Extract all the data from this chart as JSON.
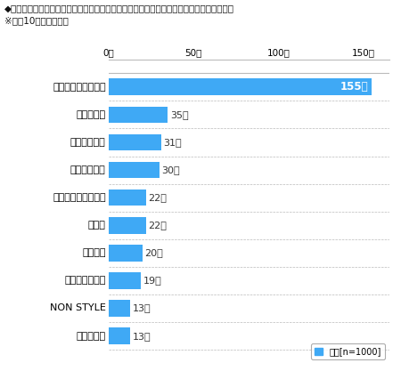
{
  "title_line1": "◆今年一年にみたお笑いのなかで、笑いのツボに入ったお笑いタレント　（自由回答形式）",
  "title_line2": "※上位10位までを抜粹",
  "categories": [
    "日本エレキテル連合",
    "どぶろっく",
    "明石家さんま",
    "ダウンタウン",
    "サンドウィッチマン",
    "流れ星",
    "有吉弘行",
    "タカアンドトシ",
    "NON STYLE",
    "さまぁ～ず"
  ],
  "values": [
    155,
    35,
    31,
    30,
    22,
    22,
    20,
    19,
    13,
    13
  ],
  "bar_color": "#3fa9f5",
  "xlim_max": 165,
  "xticks": [
    0,
    50,
    100,
    150
  ],
  "xlabel_top": [
    "0人",
    "50人",
    "100人",
    "150人"
  ],
  "legend_label": "全体[n=1000]",
  "legend_color": "#3fa9f5",
  "background_color": "#ffffff",
  "grid_color": "#bbbbbb",
  "value_label_color_first": "#ffffff",
  "value_label_color": "#333333",
  "bold_categories": [
    "日本エレキテル連合",
    "流れ星"
  ],
  "title_fontsize": 7.5,
  "label_fontsize": 8.5,
  "value_fontsize": 8.5
}
